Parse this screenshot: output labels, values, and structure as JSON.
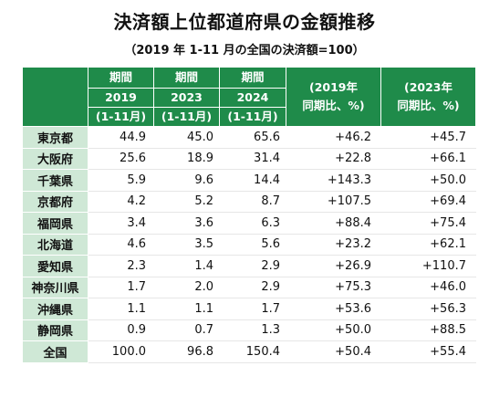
{
  "title": "決済額上位都道府県の金額推移",
  "subtitle": "（2019 年 1-11 月の全国の決済額=100）",
  "header": {
    "period_label": "期間",
    "col_2019_year": "2019",
    "col_2019_range": "(1-11月)",
    "col_2023_year": "2023",
    "col_2023_range": "(1-11月)",
    "col_2024_year": "2024",
    "col_2024_range": "(1-11月)",
    "yoy_2019_line1": "(2019年",
    "yoy_2019_line2": "同期比、%)",
    "yoy_2023_line1": "(2023年",
    "yoy_2023_line2": "同期比、%)"
  },
  "rows": [
    {
      "pref": "東京都",
      "v2019": "44.9",
      "v2023": "45.0",
      "v2024": "65.6",
      "yoy2019": "+46.2",
      "yoy2023": "+45.7"
    },
    {
      "pref": "大阪府",
      "v2019": "25.6",
      "v2023": "18.9",
      "v2024": "31.4",
      "yoy2019": "+22.8",
      "yoy2023": "+66.1"
    },
    {
      "pref": "千葉県",
      "v2019": "5.9",
      "v2023": "9.6",
      "v2024": "14.4",
      "yoy2019": "+143.3",
      "yoy2023": "+50.0"
    },
    {
      "pref": "京都府",
      "v2019": "4.2",
      "v2023": "5.2",
      "v2024": "8.7",
      "yoy2019": "+107.5",
      "yoy2023": "+69.4"
    },
    {
      "pref": "福岡県",
      "v2019": "3.4",
      "v2023": "3.6",
      "v2024": "6.3",
      "yoy2019": "+88.4",
      "yoy2023": "+75.4"
    },
    {
      "pref": "北海道",
      "v2019": "4.6",
      "v2023": "3.5",
      "v2024": "5.6",
      "yoy2019": "+23.2",
      "yoy2023": "+62.1"
    },
    {
      "pref": "愛知県",
      "v2019": "2.3",
      "v2023": "1.4",
      "v2024": "2.9",
      "yoy2019": "+26.9",
      "yoy2023": "+110.7"
    },
    {
      "pref": "神奈川県",
      "v2019": "1.7",
      "v2023": "2.0",
      "v2024": "2.9",
      "yoy2019": "+75.3",
      "yoy2023": "+46.0"
    },
    {
      "pref": "沖縄県",
      "v2019": "1.1",
      "v2023": "1.1",
      "v2024": "1.7",
      "yoy2019": "+53.6",
      "yoy2023": "+56.3"
    },
    {
      "pref": "静岡県",
      "v2019": "0.9",
      "v2023": "0.7",
      "v2024": "1.3",
      "yoy2019": "+50.0",
      "yoy2023": "+88.5"
    },
    {
      "pref": "全国",
      "v2019": "100.0",
      "v2023": "96.8",
      "v2024": "150.4",
      "yoy2019": "+50.4",
      "yoy2023": "+55.4"
    }
  ],
  "colors": {
    "header_green": "#1f8b4a",
    "pref_cell_green": "#cfe8d6"
  }
}
